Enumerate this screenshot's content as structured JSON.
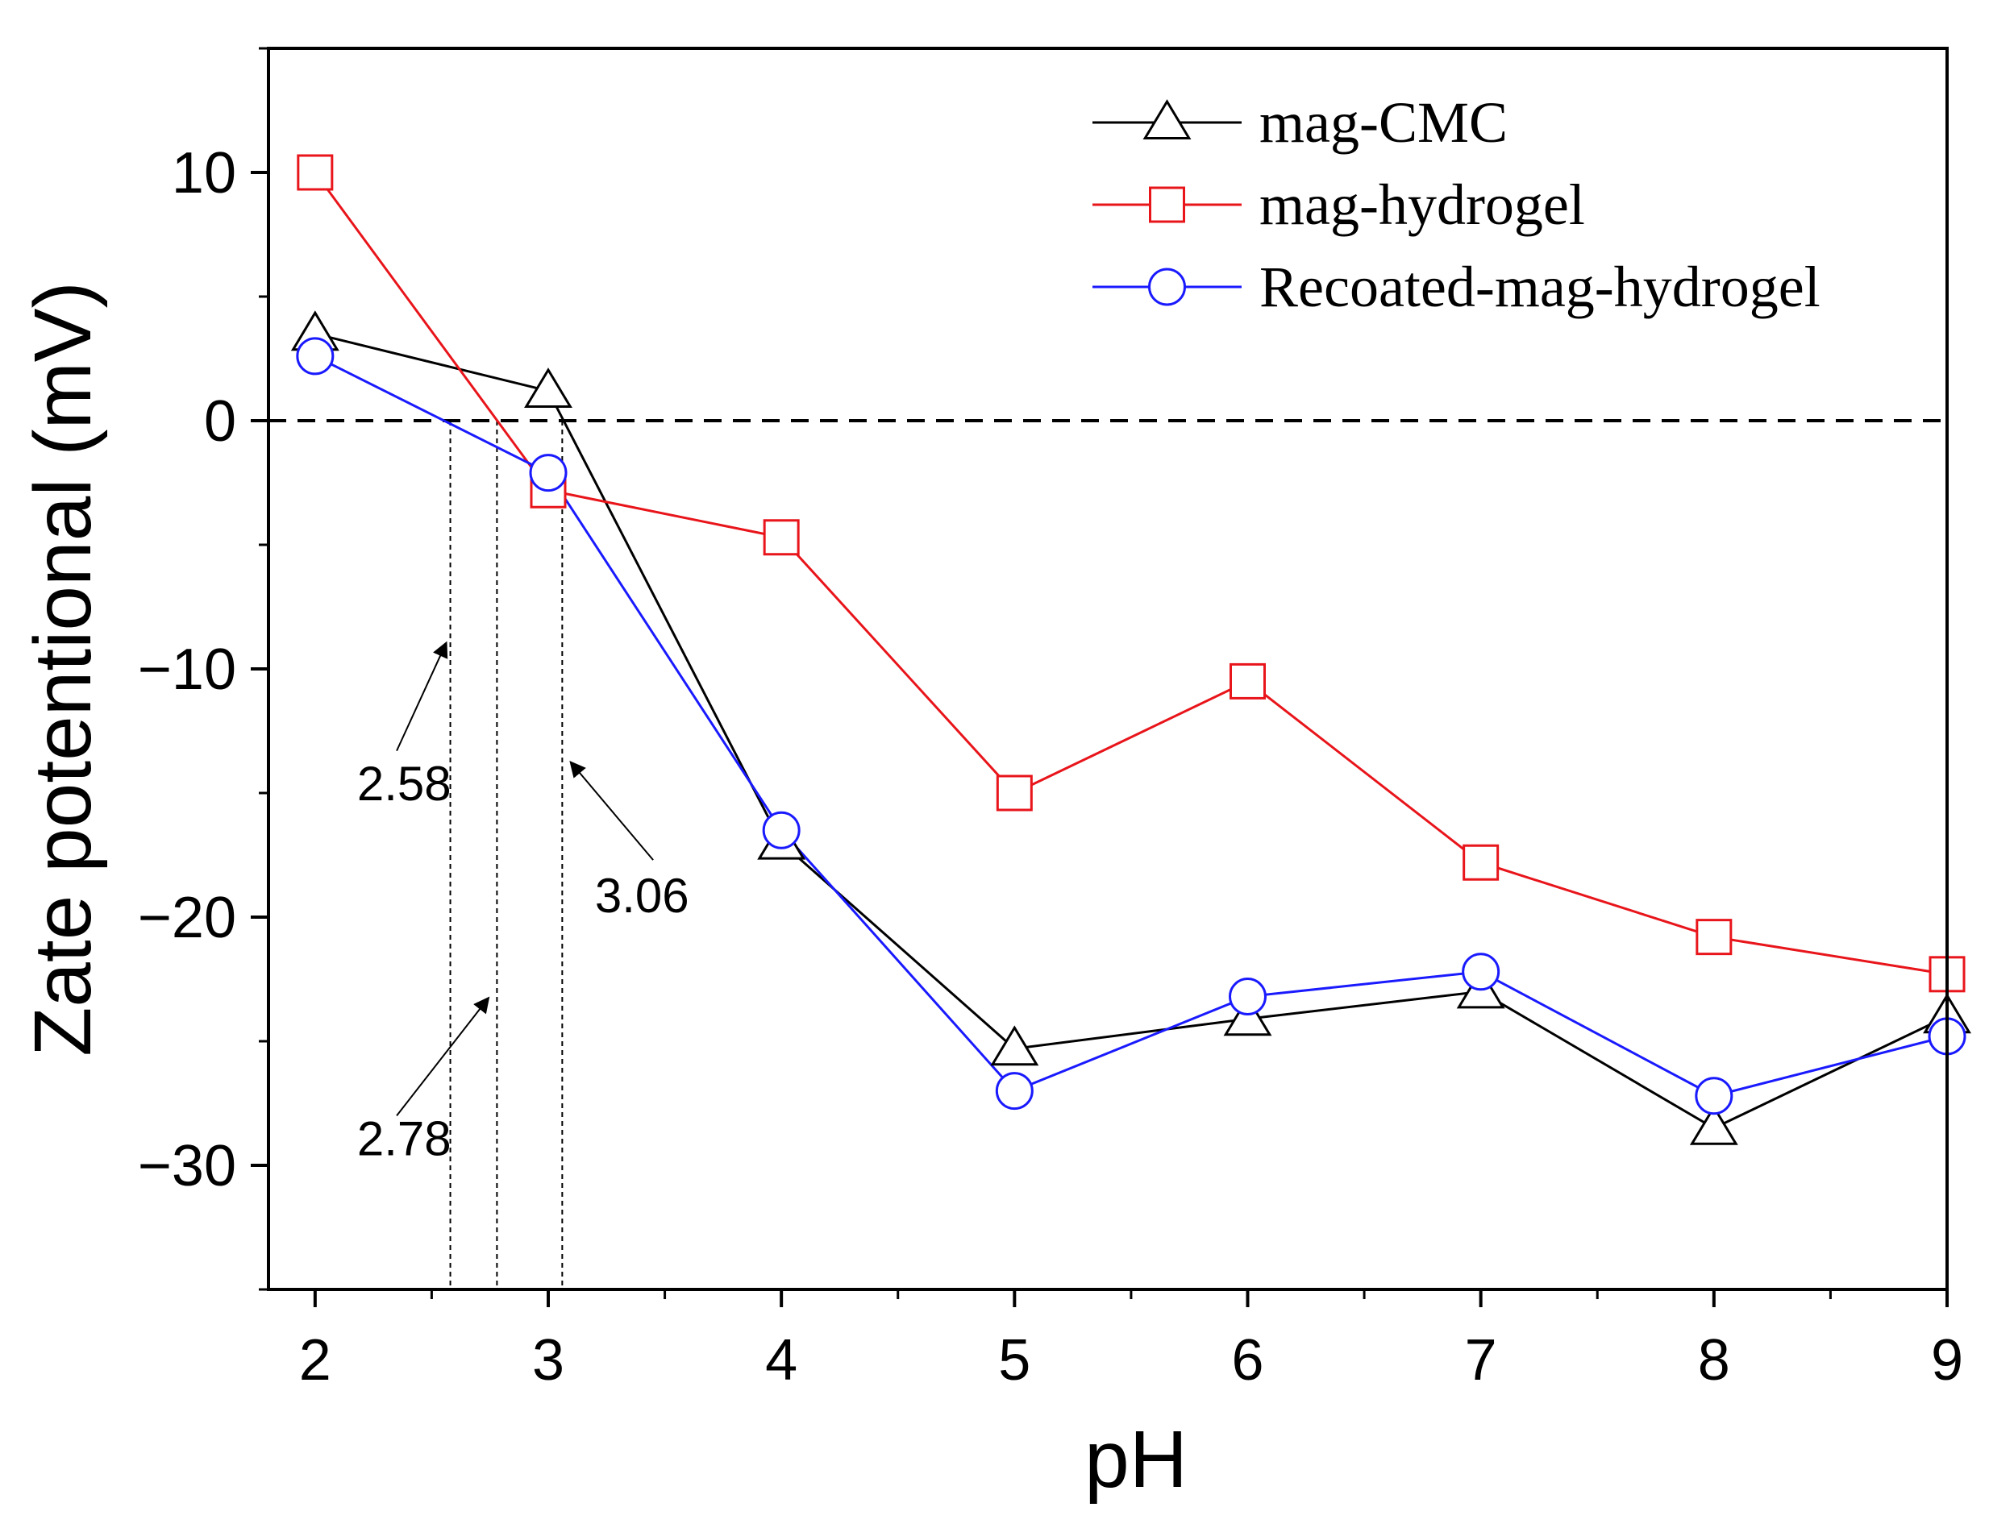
{
  "chart_data": {
    "type": "line",
    "title": "",
    "xlabel": "pH",
    "ylabel": "Zate potentional (mV)",
    "xlim": [
      1.8,
      9
    ],
    "ylim": [
      -35,
      15
    ],
    "xticks": [
      2,
      3,
      4,
      5,
      6,
      7,
      8,
      9
    ],
    "xtick_labels": [
      "2",
      "3",
      "4",
      "5",
      "6",
      "7",
      "8",
      "9"
    ],
    "yticks": [
      10,
      0,
      -10,
      -20,
      -30
    ],
    "ytick_labels": [
      "10",
      "0",
      "−10",
      "−20",
      "−30"
    ],
    "x": [
      2,
      3,
      4,
      5,
      6,
      7,
      8,
      9
    ],
    "series": [
      {
        "name": "mag-CMC",
        "marker": "triangle",
        "color": "#000000",
        "values": [
          3.5,
          1.2,
          -17,
          -25.3,
          -24.1,
          -23.0,
          -28.5,
          -24.0
        ]
      },
      {
        "name": "mag-hydrogel",
        "marker": "square",
        "color": "#e8151b",
        "values": [
          10.0,
          -2.8,
          -4.7,
          -15.0,
          -10.5,
          -17.8,
          -20.8,
          -22.3
        ]
      },
      {
        "name": "Recoated-mag-hydrogel",
        "marker": "circle",
        "color": "#1a1aff",
        "values": [
          2.6,
          -2.1,
          -16.5,
          -27.0,
          -23.2,
          -22.2,
          -27.2,
          -24.8
        ]
      }
    ],
    "reference_line": {
      "y": 0,
      "style": "dashed"
    },
    "annotations": [
      {
        "label": "2.58",
        "x": 2.58
      },
      {
        "label": "2.78",
        "x": 2.78
      },
      {
        "label": "3.06",
        "x": 3.06
      }
    ],
    "legend_position": "top-right",
    "grid": false
  }
}
